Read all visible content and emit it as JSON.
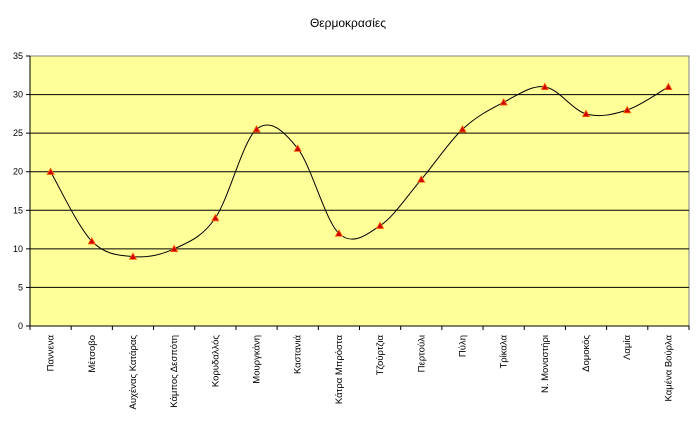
{
  "chart_data": {
    "type": "line",
    "title": "Θερμοκρασίες",
    "xlabel": "",
    "ylabel": "",
    "ylim": [
      0,
      35
    ],
    "yticks": [
      0,
      5,
      10,
      15,
      20,
      25,
      30,
      35
    ],
    "grid": true,
    "legend": "none",
    "smooth": true,
    "colors": {
      "plot_background": "#ffff99",
      "line": "#000000",
      "marker": "#cc0000",
      "marker_outline": "#ff6600",
      "gridline": "#000000"
    },
    "categories": [
      "Παννενα",
      "Μέτσοβο",
      "Αυχένας Κατάρας",
      "Κάμπος Δεσπότη",
      "Κορυδαλλός",
      "Μουργκάνη",
      "Καστανιά",
      "Κάτρα Μπρόστα",
      "Τζούρτζια",
      "Περτούλι",
      "Πύλη",
      "Τρίκαλα",
      "Ν. Μοναστήρι",
      "Δομοκός",
      "Λαμία",
      "Καμένα Βούρλα"
    ],
    "series": [
      {
        "values": [
          20,
          11,
          9,
          10,
          14,
          25.5,
          23,
          12,
          13,
          19,
          25.5,
          29,
          31,
          27.5,
          28,
          31
        ]
      }
    ]
  }
}
